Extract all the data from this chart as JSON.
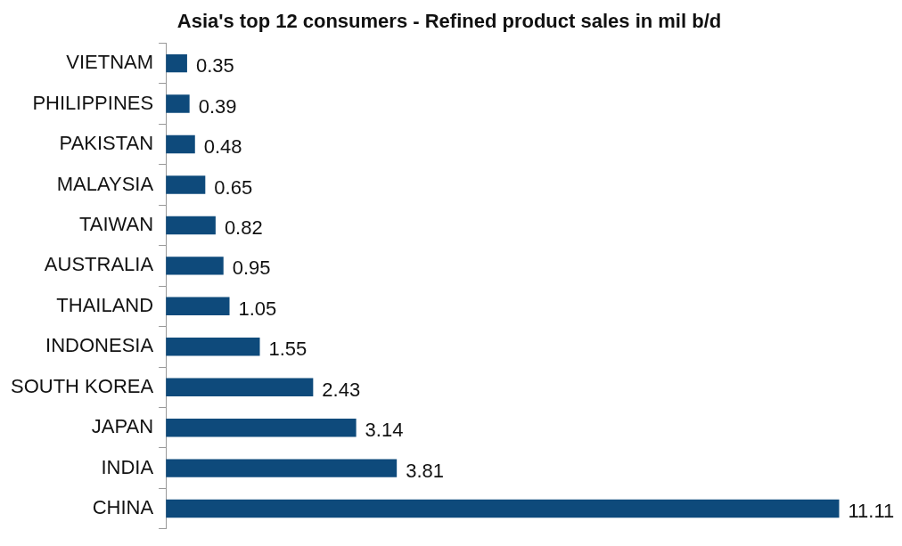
{
  "chart_data": {
    "type": "bar",
    "orientation": "horizontal",
    "title": "Asia's top 12 consumers - Refined product sales in mil b/d",
    "categories": [
      "VIETNAM",
      "PHILIPPINES",
      "PAKISTAN",
      "MALAYSIA",
      "TAIWAN",
      "AUSTRALIA",
      "THAILAND",
      "INDONESIA",
      "SOUTH KOREA",
      "JAPAN",
      "INDIA",
      "CHINA"
    ],
    "values": [
      0.35,
      0.39,
      0.48,
      0.65,
      0.82,
      0.95,
      1.05,
      1.55,
      2.43,
      3.14,
      3.81,
      11.11
    ],
    "color": "#0e4a7b",
    "data_labels": true,
    "grid": false,
    "legend": false
  }
}
